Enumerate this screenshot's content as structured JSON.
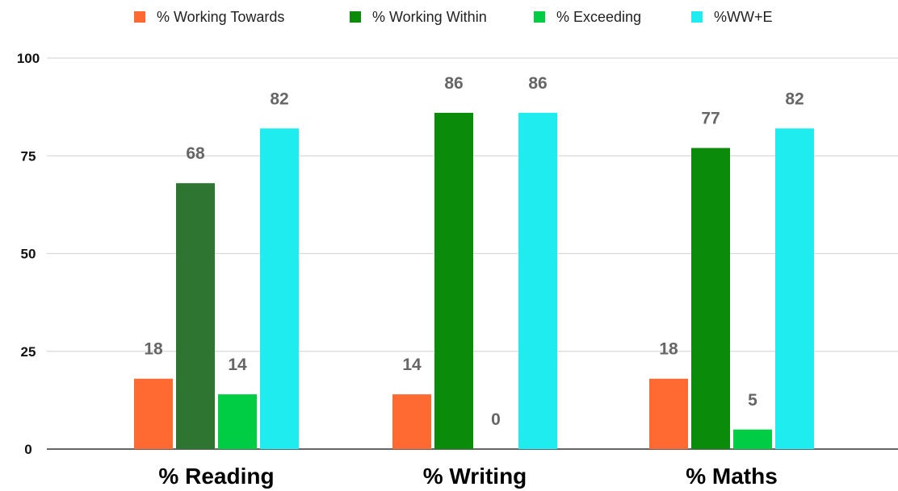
{
  "chart_data": {
    "type": "bar",
    "categories": [
      "% Reading",
      "% Writing",
      "% Maths"
    ],
    "series": [
      {
        "name": "% Working Towards",
        "values": [
          18,
          14,
          18
        ]
      },
      {
        "name": "% Working Within",
        "values": [
          68,
          86,
          77
        ]
      },
      {
        "name": "% Exceeding",
        "values": [
          14,
          0,
          5
        ]
      },
      {
        "name": "%WW+E",
        "values": [
          82,
          86,
          82
        ]
      }
    ],
    "series_colors": [
      "#ff6a33",
      "#0a8c0a",
      "#00cc44",
      "#1fecee"
    ],
    "point_colors": {
      "1": {
        "0": "#2e7532"
      }
    },
    "title": "",
    "xlabel": "",
    "ylabel": "",
    "ylim": [
      0,
      100
    ],
    "yticks": [
      0,
      25,
      50,
      75,
      100
    ],
    "grid": true,
    "legend_position": "top",
    "data_labels": true,
    "data_label_color": "#666666",
    "grid_color": "#d9d9d9"
  }
}
